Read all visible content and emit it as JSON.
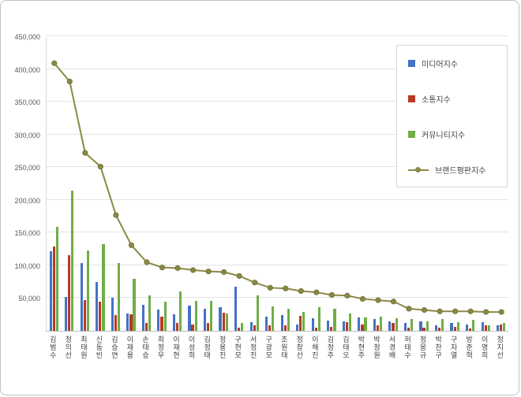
{
  "chart_data": {
    "type": "bar+line",
    "title": "",
    "categories": [
      "김범수",
      "정의선",
      "최태원",
      "신동빈",
      "김승연",
      "이재용",
      "손태승",
      "최정우",
      "이재현",
      "이성희",
      "김정태",
      "정용진",
      "구현모",
      "서정진",
      "구광모",
      "조원태",
      "정창선",
      "이해진",
      "김정주",
      "김태오",
      "박현주",
      "박정원",
      "서경배",
      "허태수",
      "정몽규",
      "박찬구",
      "구자열",
      "방준혁",
      "이명희",
      "정지선"
    ],
    "series": [
      {
        "name": "미디어지수",
        "key": "media",
        "type": "bar",
        "color": "#4472c4",
        "values": [
          122000,
          52000,
          103000,
          75000,
          50000,
          27000,
          40000,
          32000,
          25000,
          38000,
          34000,
          36000,
          68000,
          13000,
          22000,
          24000,
          10000,
          19000,
          16000,
          15000,
          20000,
          18000,
          15000,
          12000,
          14000,
          8000,
          12000,
          10000,
          13000,
          8000
        ]
      },
      {
        "name": "소통지수",
        "key": "communication",
        "type": "bar",
        "color": "#b63a23",
        "values": [
          129000,
          116000,
          47000,
          45000,
          24000,
          25000,
          12000,
          22000,
          12000,
          10000,
          12000,
          28000,
          5000,
          8000,
          8000,
          8000,
          23000,
          5000,
          6000,
          13000,
          10000,
          8000,
          12000,
          5000,
          5000,
          5000,
          6000,
          4000,
          8000,
          10000
        ]
      },
      {
        "name": "커뮤니티지수",
        "key": "community",
        "type": "bar",
        "color": "#70ad47",
        "values": [
          159000,
          214000,
          123000,
          132000,
          104000,
          80000,
          54000,
          44000,
          60000,
          46000,
          46000,
          27000,
          12000,
          54000,
          37000,
          34000,
          29000,
          36000,
          34000,
          27000,
          20000,
          22000,
          19000,
          18000,
          14000,
          18000,
          13000,
          17000,
          9000,
          12000
        ]
      },
      {
        "name": "브랜드평판지수",
        "key": "brand",
        "type": "line",
        "color": "#8a8a45",
        "stroke": "#75733a",
        "values": [
          410000,
          382000,
          273000,
          252000,
          178000,
          132000,
          106000,
          98000,
          97000,
          94000,
          92000,
          91000,
          85000,
          75000,
          67000,
          66000,
          62000,
          60000,
          56000,
          55000,
          50000,
          48000,
          46000,
          35000,
          33000,
          31000,
          31000,
          31000,
          30000,
          30000
        ]
      }
    ],
    "ylim": [
      0,
      450000
    ],
    "ytick_step": 50000,
    "ytick_labels": [
      "450,000",
      "400,000",
      "350,000",
      "300,000",
      "250,000",
      "200,000",
      "150,000",
      "100,000",
      "50,000"
    ],
    "grid": true,
    "legend_position": "right-top"
  }
}
